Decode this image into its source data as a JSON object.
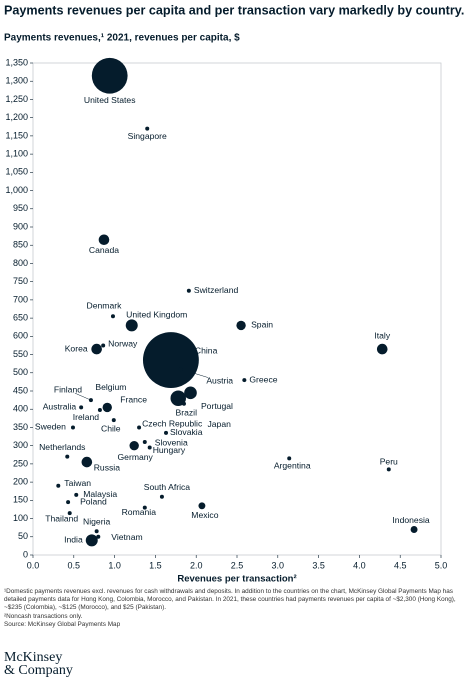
{
  "chart_data": {
    "type": "bubble",
    "title": "Payments revenues per capita and per transaction vary markedly by country.",
    "subtitle": "Payments revenues,¹ 2021, revenues per capita, $",
    "x_label": "Revenues per transaction²",
    "color": "#051c2c",
    "labels": [
      "United States",
      "Singapore",
      "Canada",
      "Switzerland",
      "Denmark",
      "United Kingdom",
      "Spain",
      "Italy",
      "Norway",
      "Korea",
      "China",
      "Austria",
      "Greece",
      "Belgium",
      "Finland",
      "Australia",
      "France",
      "Japan",
      "Brazil",
      "Portugal",
      "Ireland",
      "Chile",
      "Sweden",
      "Czech Republic",
      "Slovakia",
      "Slovenia",
      "Hungary",
      "Germany",
      "Netherlands",
      "Argentina",
      "Russia",
      "Peru",
      "Taiwan",
      "Malaysia",
      "South Africa",
      "Poland",
      "Mexico",
      "Romania",
      "Thailand",
      "Indonesia",
      "Nigeria",
      "Vietnam",
      "India"
    ],
    "x": [
      0.94,
      1.4,
      0.87,
      1.91,
      0.98,
      1.21,
      2.55,
      4.28,
      0.86,
      0.78,
      1.69,
      1.81,
      2.59,
      0.93,
      0.71,
      0.59,
      0.91,
      1.93,
      1.78,
      1.85,
      0.82,
      0.99,
      0.49,
      1.3,
      1.63,
      1.37,
      1.43,
      1.24,
      0.42,
      3.14,
      0.66,
      4.36,
      0.31,
      0.53,
      1.58,
      0.43,
      2.07,
      1.37,
      0.45,
      4.67,
      0.78,
      0.8,
      0.72
    ],
    "values": [
      1315,
      1170,
      865,
      725,
      655,
      630,
      630,
      565,
      575,
      565,
      535,
      510,
      480,
      410,
      425,
      405,
      405,
      445,
      430,
      415,
      398,
      370,
      350,
      350,
      335,
      310,
      295,
      300,
      270,
      265,
      255,
      235,
      190,
      165,
      160,
      145,
      135,
      130,
      115,
      70,
      65,
      50,
      40
    ],
    "sizes": [
      320,
      4,
      28,
      4,
      4,
      36,
      22,
      28,
      4,
      28,
      780,
      4,
      4,
      4,
      4,
      4,
      22,
      40,
      60,
      4,
      4,
      4,
      4,
      4,
      4,
      4,
      4,
      22,
      4,
      4,
      28,
      4,
      4,
      4,
      4,
      4,
      12,
      4,
      4,
      12,
      4,
      4,
      36
    ],
    "xlim": [
      0,
      5
    ],
    "xticks": [
      {
        "value": 0,
        "label": "0.0"
      },
      0.5,
      {
        "value": 1,
        "label": "1.0"
      },
      1.5,
      {
        "value": 2,
        "label": "2.0"
      },
      2.5,
      {
        "value": 3,
        "label": "3.0"
      },
      3.5,
      {
        "value": 4,
        "label": "4.0"
      },
      4.5,
      {
        "value": 5,
        "label": "5.0"
      }
    ],
    "ylim": [
      0,
      1350
    ],
    "yticks": [
      0,
      50,
      100,
      150,
      200,
      250,
      300,
      350,
      400,
      450,
      500,
      550,
      600,
      650,
      700,
      750,
      800,
      850,
      900,
      950,
      {
        "value": 1000,
        "label": "1,000"
      },
      {
        "value": 1050,
        "label": "1,050"
      },
      {
        "value": 1100,
        "label": "1,100"
      },
      {
        "value": 1150,
        "label": "1,150"
      },
      {
        "value": 1200,
        "label": "1,200"
      },
      {
        "value": 1250,
        "label": "1,250"
      },
      {
        "value": 1300,
        "label": "1,300"
      },
      {
        "value": 1350,
        "label": "1,350"
      }
    ],
    "grid": false
  },
  "footnotes": [
    "¹Domestic payments revenues excl. revenues for cash withdrawals and deposits. In addition to the countries on the chart, McKinsey Global Payments Map has detailed payments data for Hong Kong, Colombia, Morocco, and Pakistan. In 2021, these countries had payments revenues per capita of ~$2,300 (Hong Kong), ~$235 (Colombia), ~$125 (Morocco), and $25 (Pakistan).",
    "²Noncash transactions only.",
    "Source: McKinsey Global Payments Map"
  ],
  "logo": [
    "McKinsey",
    "& Company"
  ]
}
